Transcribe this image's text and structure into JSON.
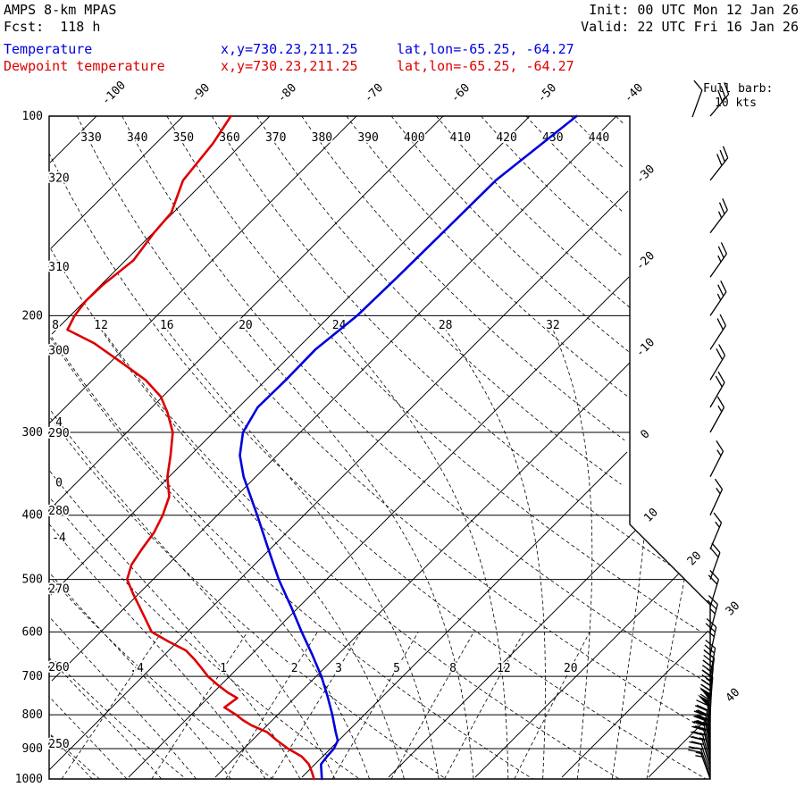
{
  "header": {
    "model": "AMPS 8-km MPAS",
    "fcst": "Fcst:  118 h",
    "init": "Init: 00 UTC Mon 12 Jan 26",
    "valid": "Valid: 22 UTC Fri 16 Jan 26",
    "temp_label": "Temperature",
    "dewp_label": "Dewpoint temperature",
    "xy": "x,y=730.23,211.25",
    "latlon": "lat,lon=-65.25, -64.27",
    "barb_legend_1": "Full barb:",
    "barb_legend_2": "10 kts"
  },
  "colors": {
    "temperature": "#0000dd",
    "dewpoint": "#dd0000",
    "grid": "#000000",
    "background": "#ffffff"
  },
  "chart_data": {
    "type": "skew-t-log-p",
    "pressure_levels_hpa": [
      100,
      200,
      300,
      400,
      500,
      600,
      700,
      800,
      900,
      1000
    ],
    "isotherm_labels_top_c": [
      -100,
      -90,
      -80,
      -70,
      -60,
      -50,
      -40
    ],
    "isotherm_labels_right_c": [
      -30,
      -20,
      -10,
      0,
      10,
      20,
      30,
      40
    ],
    "dry_adiabat_labels_top_k": [
      320,
      330,
      340,
      350,
      360,
      370,
      380,
      390,
      400,
      410,
      420,
      430,
      440
    ],
    "dry_adiabat_labels_left_k": [
      310,
      300,
      290,
      280,
      270,
      260,
      250
    ],
    "moist_adiabat_labels_top_c": [
      8,
      12,
      16,
      20,
      24,
      28,
      32
    ],
    "moist_adiabat_labels_left_c": [
      4,
      0,
      -4
    ],
    "mixing_ratio_labels_gkg": [
      ".4",
      "1",
      "2",
      "3",
      "5",
      "8",
      "12",
      "20"
    ],
    "temperature_profile": [
      {
        "p": 100,
        "t": -44.6
      },
      {
        "p": 125,
        "t": -46.5
      },
      {
        "p": 150,
        "t": -46.6
      },
      {
        "p": 175,
        "t": -46.7
      },
      {
        "p": 200,
        "t": -46.9
      },
      {
        "p": 225,
        "t": -47.8
      },
      {
        "p": 250,
        "t": -47.7
      },
      {
        "p": 275,
        "t": -47.8
      },
      {
        "p": 300,
        "t": -46.6
      },
      {
        "p": 325,
        "t": -44.3
      },
      {
        "p": 350,
        "t": -41.4
      },
      {
        "p": 375,
        "t": -38.3
      },
      {
        "p": 400,
        "t": -35.4
      },
      {
        "p": 450,
        "t": -30.2
      },
      {
        "p": 500,
        "t": -25.5
      },
      {
        "p": 550,
        "t": -20.9
      },
      {
        "p": 600,
        "t": -16.8
      },
      {
        "p": 650,
        "t": -12.9
      },
      {
        "p": 700,
        "t": -9.4
      },
      {
        "p": 750,
        "t": -6.4
      },
      {
        "p": 800,
        "t": -3.7
      },
      {
        "p": 850,
        "t": -1.3
      },
      {
        "p": 875,
        "t": -0.1
      },
      {
        "p": 900,
        "t": 0.4
      },
      {
        "p": 925,
        "t": 0.5
      },
      {
        "p": 950,
        "t": 0.7
      },
      {
        "p": 1000,
        "t": 2.5
      }
    ],
    "dewpoint_profile": [
      {
        "p": 100,
        "t": -84.5
      },
      {
        "p": 110,
        "t": -83.4
      },
      {
        "p": 125,
        "t": -82.6
      },
      {
        "p": 140,
        "t": -80.2
      },
      {
        "p": 150,
        "t": -79.9
      },
      {
        "p": 165,
        "t": -79.1
      },
      {
        "p": 180,
        "t": -79.8
      },
      {
        "p": 190,
        "t": -79.9
      },
      {
        "p": 200,
        "t": -79.5
      },
      {
        "p": 210,
        "t": -78.7
      },
      {
        "p": 220,
        "t": -74.1
      },
      {
        "p": 235,
        "t": -68.8
      },
      {
        "p": 250,
        "t": -63.9
      },
      {
        "p": 265,
        "t": -60.2
      },
      {
        "p": 280,
        "t": -57.6
      },
      {
        "p": 300,
        "t": -54.7
      },
      {
        "p": 325,
        "t": -52.3
      },
      {
        "p": 350,
        "t": -50.2
      },
      {
        "p": 375,
        "t": -47.7
      },
      {
        "p": 400,
        "t": -46.3
      },
      {
        "p": 425,
        "t": -45.3
      },
      {
        "p": 450,
        "t": -44.8
      },
      {
        "p": 475,
        "t": -44.2
      },
      {
        "p": 500,
        "t": -43.0
      },
      {
        "p": 525,
        "t": -40.7
      },
      {
        "p": 550,
        "t": -38.4
      },
      {
        "p": 575,
        "t": -36.2
      },
      {
        "p": 600,
        "t": -34.1
      },
      {
        "p": 620,
        "t": -31.1
      },
      {
        "p": 640,
        "t": -28.0
      },
      {
        "p": 660,
        "t": -26.0
      },
      {
        "p": 680,
        "t": -24.2
      },
      {
        "p": 700,
        "t": -22.5
      },
      {
        "p": 720,
        "t": -20.5
      },
      {
        "p": 740,
        "t": -18.4
      },
      {
        "p": 755,
        "t": -16.6
      },
      {
        "p": 780,
        "t": -17.0
      },
      {
        "p": 800,
        "t": -14.8
      },
      {
        "p": 815,
        "t": -13.4
      },
      {
        "p": 830,
        "t": -11.8
      },
      {
        "p": 850,
        "t": -9.2
      },
      {
        "p": 875,
        "t": -7.1
      },
      {
        "p": 900,
        "t": -4.9
      },
      {
        "p": 925,
        "t": -2.4
      },
      {
        "p": 950,
        "t": -0.7
      },
      {
        "p": 975,
        "t": 0.5
      },
      {
        "p": 1000,
        "t": 1.6
      }
    ],
    "wind_barbs": [
      {
        "p": 100,
        "spd": 30,
        "dir": 40
      },
      {
        "p": 125,
        "spd": 30,
        "dir": 38
      },
      {
        "p": 150,
        "spd": 25,
        "dir": 37
      },
      {
        "p": 175,
        "spd": 25,
        "dir": 35
      },
      {
        "p": 200,
        "spd": 25,
        "dir": 34
      },
      {
        "p": 225,
        "spd": 20,
        "dir": 33
      },
      {
        "p": 250,
        "spd": 20,
        "dir": 31
      },
      {
        "p": 275,
        "spd": 20,
        "dir": 30
      },
      {
        "p": 300,
        "spd": 15,
        "dir": 29
      },
      {
        "p": 350,
        "spd": 15,
        "dir": 27
      },
      {
        "p": 400,
        "spd": 15,
        "dir": 25
      },
      {
        "p": 450,
        "spd": 15,
        "dir": 23
      },
      {
        "p": 500,
        "spd": 20,
        "dir": 20
      },
      {
        "p": 550,
        "spd": 20,
        "dir": 17
      },
      {
        "p": 600,
        "spd": 25,
        "dir": 15
      },
      {
        "p": 650,
        "spd": 25,
        "dir": 12
      },
      {
        "p": 700,
        "spd": 30,
        "dir": 10
      },
      {
        "p": 725,
        "spd": 35,
        "dir": 8
      },
      {
        "p": 750,
        "spd": 35,
        "dir": 6
      },
      {
        "p": 775,
        "spd": 40,
        "dir": 5
      },
      {
        "p": 800,
        "spd": 45,
        "dir": 3
      },
      {
        "p": 820,
        "spd": 50,
        "dir": 0
      },
      {
        "p": 840,
        "spd": 50,
        "dir": 357
      },
      {
        "p": 855,
        "spd": 45,
        "dir": 355
      },
      {
        "p": 870,
        "spd": 40,
        "dir": 353
      },
      {
        "p": 885,
        "spd": 35,
        "dir": 351
      },
      {
        "p": 900,
        "spd": 30,
        "dir": 350
      },
      {
        "p": 915,
        "spd": 25,
        "dir": 348
      },
      {
        "p": 930,
        "spd": 25,
        "dir": 347
      },
      {
        "p": 945,
        "spd": 20,
        "dir": 345
      },
      {
        "p": 960,
        "spd": 20,
        "dir": 344
      },
      {
        "p": 975,
        "spd": 15,
        "dir": 342
      },
      {
        "p": 990,
        "spd": 15,
        "dir": 341
      },
      {
        "p": 1000,
        "spd": 15,
        "dir": 340
      }
    ]
  }
}
